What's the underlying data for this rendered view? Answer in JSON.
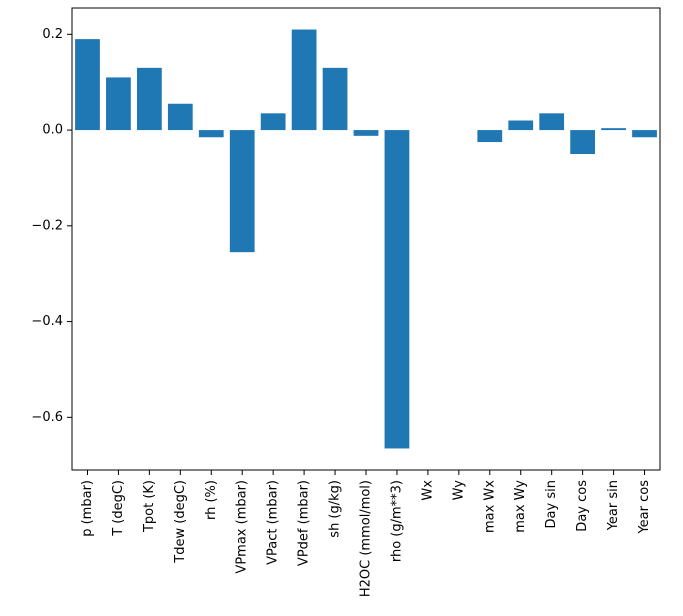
{
  "figure": {
    "background": "#ffffff"
  },
  "chart_data": {
    "type": "bar",
    "categories": [
      "p (mbar)",
      "T (degC)",
      "Tpot (K)",
      "Tdew (degC)",
      "rh (%)",
      "VPmax (mbar)",
      "VPact (mbar)",
      "VPdef (mbar)",
      "sh (g/kg)",
      "H2OC (mmol/mol)",
      "rho (g/m**3)",
      "Wx",
      "Wy",
      "max Wx",
      "max Wy",
      "Day sin",
      "Day cos",
      "Year sin",
      "Year cos"
    ],
    "values": [
      0.19,
      0.11,
      0.13,
      0.055,
      -0.015,
      -0.255,
      0.035,
      0.21,
      0.13,
      -0.012,
      -0.665,
      0.0,
      0.0,
      -0.025,
      0.02,
      0.035,
      -0.05,
      0.004,
      -0.015
    ],
    "yticks": [
      {
        "value": 0.2,
        "label": "0.2"
      },
      {
        "value": 0.0,
        "label": "0.0"
      },
      {
        "value": -0.2,
        "label": "−0.2"
      },
      {
        "value": -0.4,
        "label": "−0.4"
      },
      {
        "value": -0.6,
        "label": "−0.6"
      }
    ],
    "ylim": [
      -0.71,
      0.255
    ],
    "bar_color": "#1f77b4",
    "axis_color": "#000000",
    "grid": false,
    "legend": false,
    "x_tick_label_rotation": 90
  }
}
